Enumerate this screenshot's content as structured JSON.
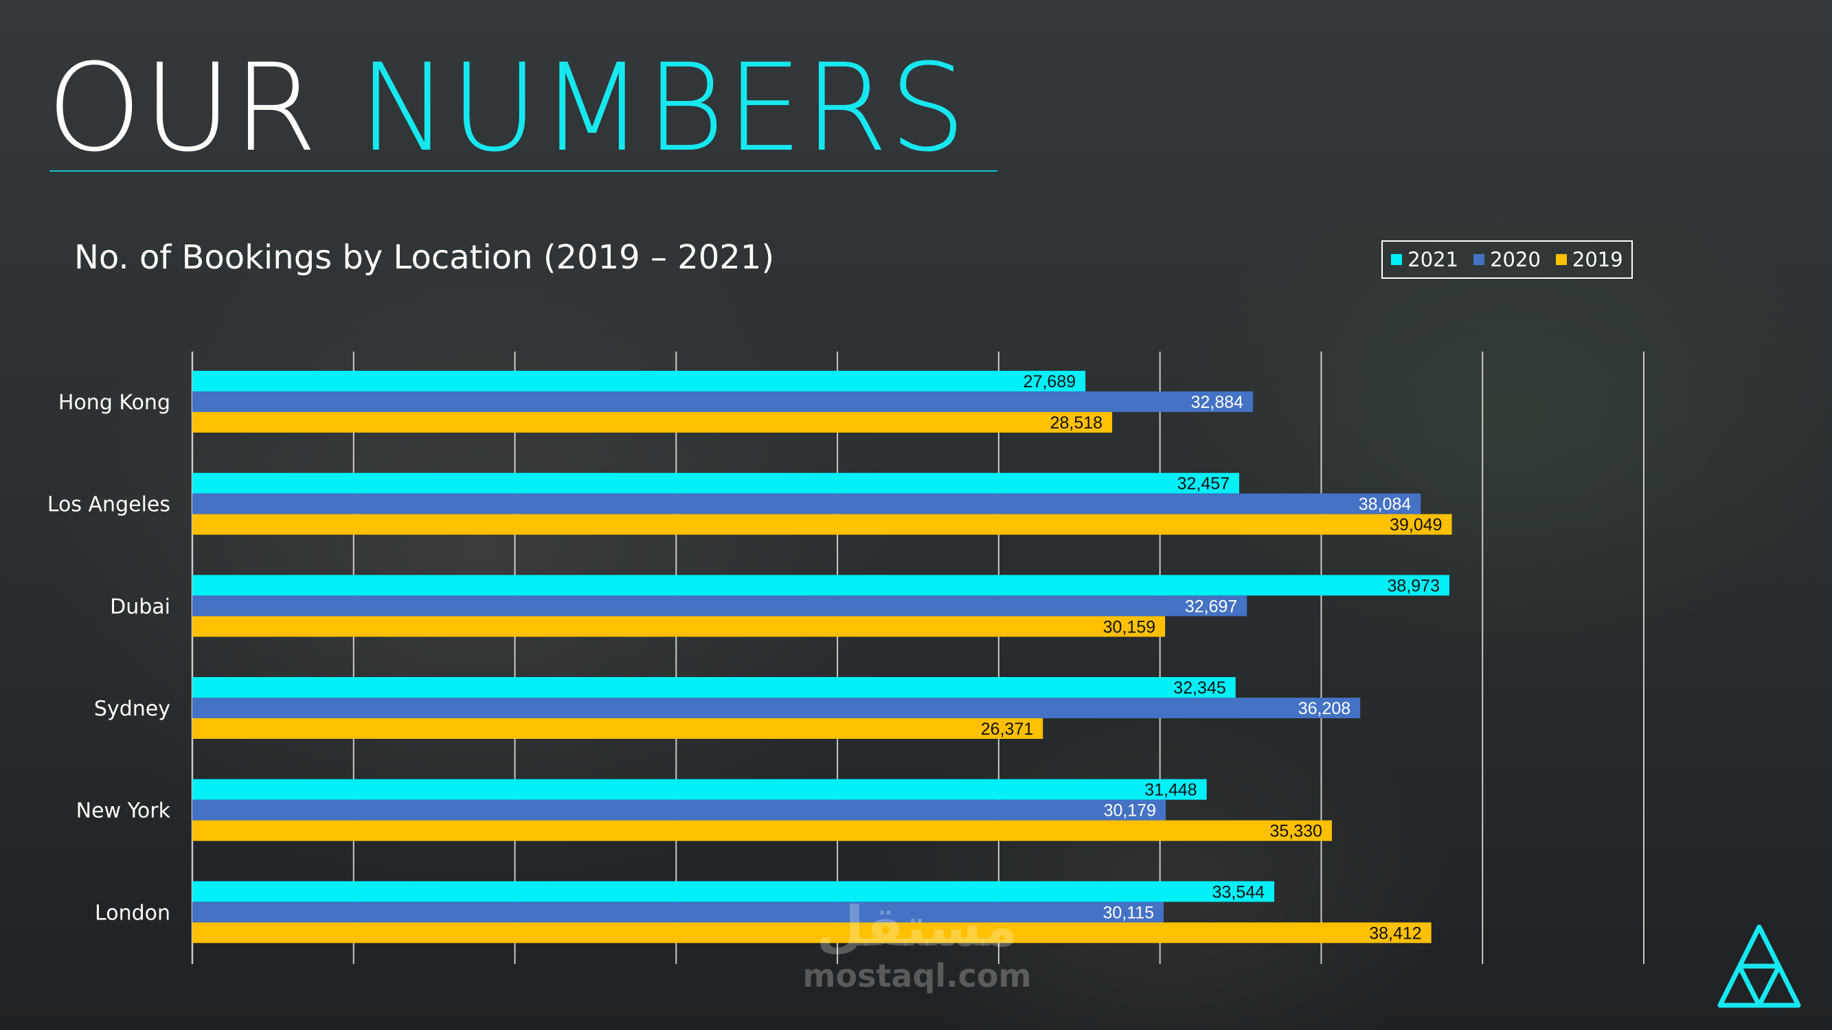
{
  "slide": {
    "title_part1": "OUR",
    "title_part2": "NUMBERS"
  },
  "colors": {
    "accent": "#17e8f0",
    "series_2021": "#00f0f8",
    "series_2020": "#4472c4",
    "series_2019": "#ffc000"
  },
  "watermark": {
    "text": "mostaql.com"
  },
  "chart_data": {
    "type": "bar",
    "orientation": "horizontal",
    "title": "No. of Bookings by Location (2019 – 2021)",
    "categories": [
      "Hong Kong",
      "Los Angeles",
      "Dubai",
      "Sydney",
      "New York",
      "London"
    ],
    "series": [
      {
        "name": "2021",
        "values": [
          27689,
          32457,
          38973,
          32345,
          31448,
          33544
        ],
        "labels": [
          "27,689",
          "32,457",
          "38,973",
          "32,345",
          "31,448",
          "33,544"
        ],
        "color": "#00f0f8"
      },
      {
        "name": "2020",
        "values": [
          32884,
          38084,
          32697,
          36208,
          30179,
          30115
        ],
        "labels": [
          "32,884",
          "38,084",
          "32,697",
          "36,208",
          "30,179",
          "30,115"
        ],
        "color": "#4472c4"
      },
      {
        "name": "2019",
        "values": [
          28518,
          39049,
          30159,
          26371,
          35330,
          38412
        ],
        "labels": [
          "28,518",
          "39,049",
          "30,159",
          "26,371",
          "35,330",
          "38,412"
        ],
        "color": "#ffc000"
      }
    ],
    "xlim": [
      0,
      45000
    ],
    "x_gridline_step": 5000,
    "grid": true,
    "legend_position": "top-right"
  }
}
